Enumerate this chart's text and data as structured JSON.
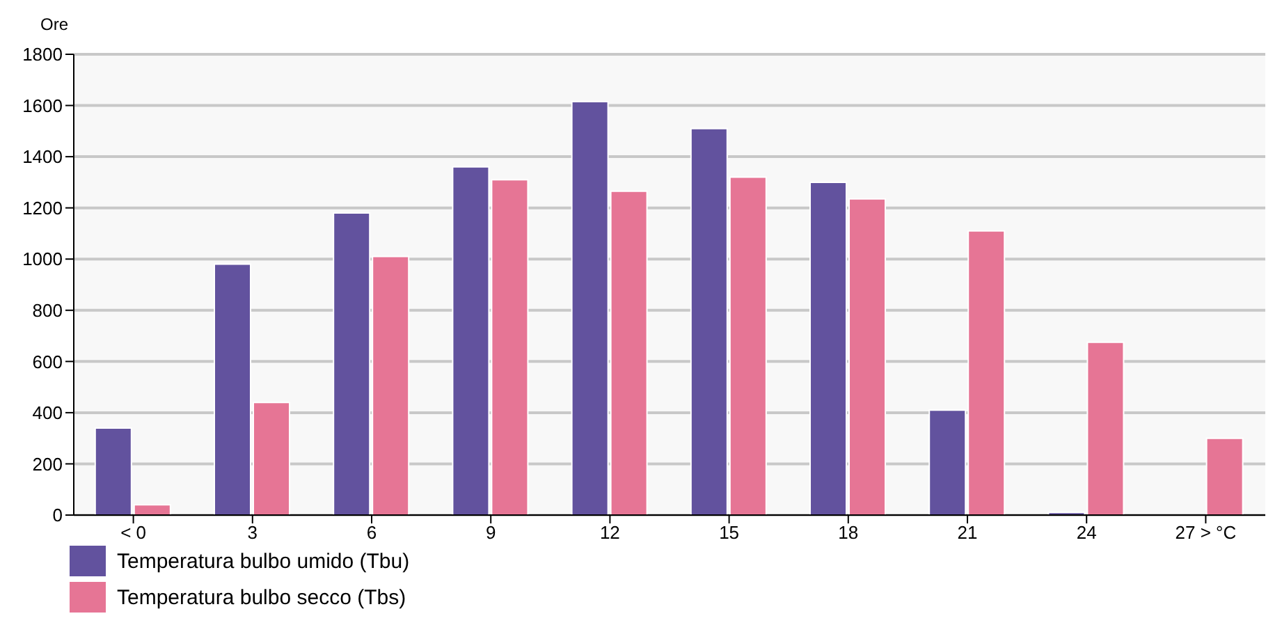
{
  "chart_data": {
    "type": "bar",
    "ylabel": "Ore",
    "categories": [
      "< 0",
      "3",
      "6",
      "9",
      "12",
      "15",
      "18",
      "21",
      "24",
      "27 > °C"
    ],
    "series": [
      {
        "name": "Temperatura bulbo umido (Tbu)",
        "color": "#62529e",
        "values": [
          340,
          980,
          1180,
          1360,
          1615,
          1510,
          1300,
          410,
          10,
          null
        ]
      },
      {
        "name": "Temperatura bulbo secco (Tbs)",
        "color": "#e67595",
        "values": [
          40,
          440,
          1010,
          1310,
          1265,
          1320,
          1235,
          1110,
          675,
          300
        ]
      }
    ],
    "ylim": [
      0,
      1800
    ],
    "yticks": [
      0,
      200,
      400,
      600,
      800,
      1000,
      1200,
      1400,
      1600,
      1800
    ],
    "grid": "y",
    "legend": "bottom"
  }
}
